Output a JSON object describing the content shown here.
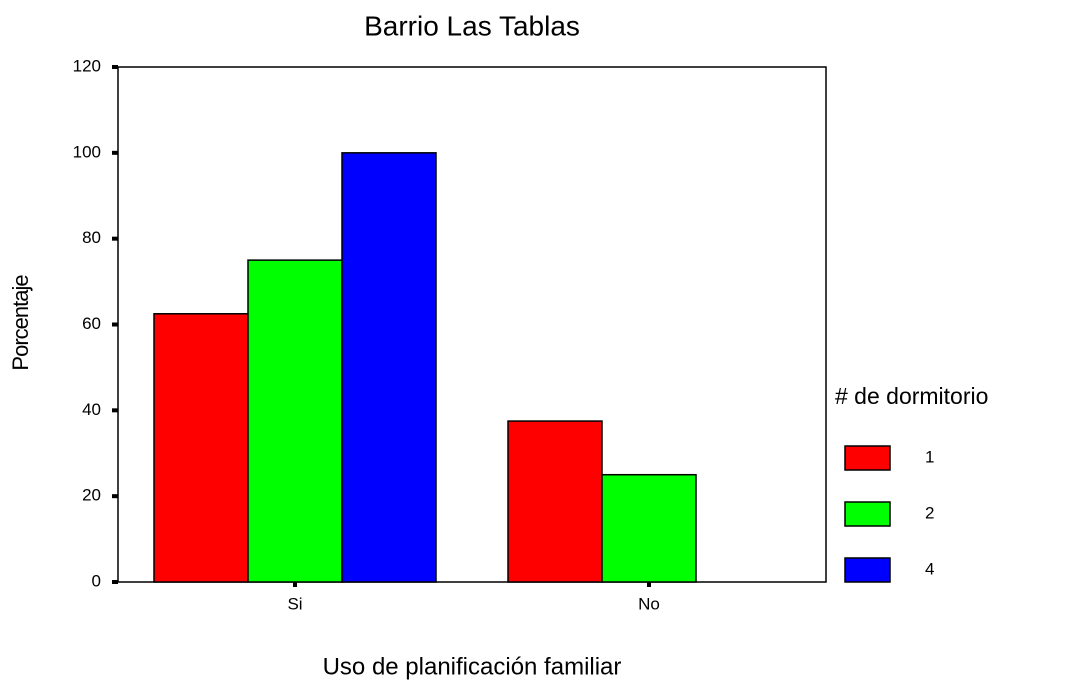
{
  "chart_data": {
    "type": "bar",
    "title": "Barrio Las Tablas",
    "x_label": "Uso de planificación familiar",
    "y_label": "Porcentaje",
    "categories": [
      "Si",
      "No"
    ],
    "legend_title": "# de dormitorio",
    "legend_position": "right",
    "series": [
      {
        "name": "1",
        "color": "#ff0000",
        "values": [
          62.5,
          37.5
        ]
      },
      {
        "name": "2",
        "color": "#00ff00",
        "values": [
          75,
          25
        ]
      },
      {
        "name": "4",
        "color": "#0000ff",
        "values": [
          100,
          null
        ]
      }
    ],
    "ylim": [
      0,
      120
    ],
    "yticks": [
      0,
      20,
      40,
      60,
      80,
      100,
      120
    ],
    "grid": false
  }
}
